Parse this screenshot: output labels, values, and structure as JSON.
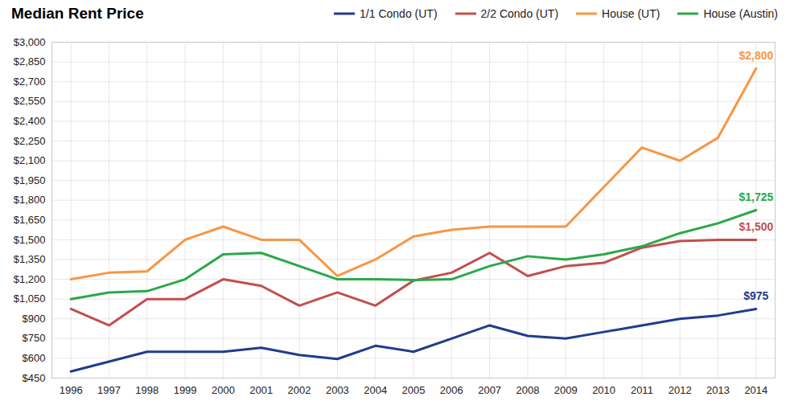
{
  "chart_data": {
    "type": "line",
    "title": "Median Rent Price",
    "x": [
      1996,
      1997,
      1998,
      1999,
      2000,
      2001,
      2002,
      2003,
      2004,
      2005,
      2006,
      2007,
      2008,
      2009,
      2010,
      2011,
      2012,
      2013,
      2014
    ],
    "xlim": [
      1995.5,
      2014.5
    ],
    "xticks": [
      1996,
      1997,
      1998,
      1999,
      2000,
      2001,
      2002,
      2003,
      2004,
      2005,
      2006,
      2007,
      2008,
      2009,
      2010,
      2011,
      2012,
      2013,
      2014
    ],
    "ylim": [
      450,
      3000
    ],
    "yticks": [
      {
        "value": 450,
        "label": "$450"
      },
      {
        "value": 600,
        "label": "$600"
      },
      {
        "value": 750,
        "label": "$750"
      },
      {
        "value": 900,
        "label": "$900"
      },
      {
        "value": 1050,
        "label": "$1,050"
      },
      {
        "value": 1200,
        "label": "$1,200"
      },
      {
        "value": 1350,
        "label": "$1,350"
      },
      {
        "value": 1500,
        "label": "$1,500"
      },
      {
        "value": 1650,
        "label": "$1,650"
      },
      {
        "value": 1800,
        "label": "$1,800"
      },
      {
        "value": 1950,
        "label": "$1,950"
      },
      {
        "value": 2100,
        "label": "$2,100"
      },
      {
        "value": 2250,
        "label": "$2,250"
      },
      {
        "value": 2400,
        "label": "$2,400"
      },
      {
        "value": 2550,
        "label": "$2,550"
      },
      {
        "value": 2700,
        "label": "$2,700"
      },
      {
        "value": 2850,
        "label": "$2,850"
      },
      {
        "value": 3000,
        "label": "$3,000"
      }
    ],
    "grid": true,
    "legend": "top",
    "series": [
      {
        "name": "1/1 Condo (UT)",
        "color": "#203c8c",
        "values": [
          500,
          575,
          650,
          650,
          650,
          680,
          625,
          595,
          695,
          650,
          750,
          850,
          770,
          750,
          800,
          850,
          900,
          925,
          975
        ],
        "value_labels": [
          null,
          null,
          null,
          null,
          null,
          null,
          null,
          null,
          null,
          null,
          null,
          null,
          null,
          null,
          null,
          null,
          null,
          null,
          "$975"
        ]
      },
      {
        "name": "2/2 Condo (UT)",
        "color": "#c0504d",
        "values": [
          975,
          850,
          1050,
          1050,
          1200,
          1150,
          1000,
          1100,
          1000,
          1190,
          1250,
          1400,
          1225,
          1300,
          1325,
          1440,
          1490,
          1500,
          1500
        ],
        "value_labels": [
          null,
          null,
          null,
          null,
          null,
          null,
          null,
          null,
          null,
          null,
          null,
          null,
          null,
          null,
          null,
          null,
          null,
          null,
          "$1,500"
        ]
      },
      {
        "name": "House (UT)",
        "color": "#f79646",
        "values": [
          1200,
          1250,
          1260,
          1500,
          1600,
          1500,
          1500,
          1225,
          1350,
          1525,
          1575,
          1600,
          1600,
          1600,
          1900,
          2200,
          2100,
          2275,
          2800
        ],
        "value_labels": [
          null,
          null,
          null,
          null,
          null,
          null,
          null,
          null,
          null,
          null,
          null,
          null,
          null,
          null,
          null,
          null,
          null,
          null,
          "$2,800"
        ]
      },
      {
        "name": "House (Austin)",
        "color": "#2aa84a",
        "values": [
          1050,
          1100,
          1110,
          1200,
          1390,
          1400,
          1300,
          1200,
          1200,
          1195,
          1200,
          1300,
          1375,
          1350,
          1390,
          1450,
          1550,
          1625,
          1725
        ],
        "value_labels": [
          null,
          null,
          null,
          null,
          null,
          null,
          null,
          null,
          null,
          null,
          null,
          null,
          null,
          null,
          null,
          null,
          null,
          null,
          "$1,725"
        ]
      }
    ]
  }
}
